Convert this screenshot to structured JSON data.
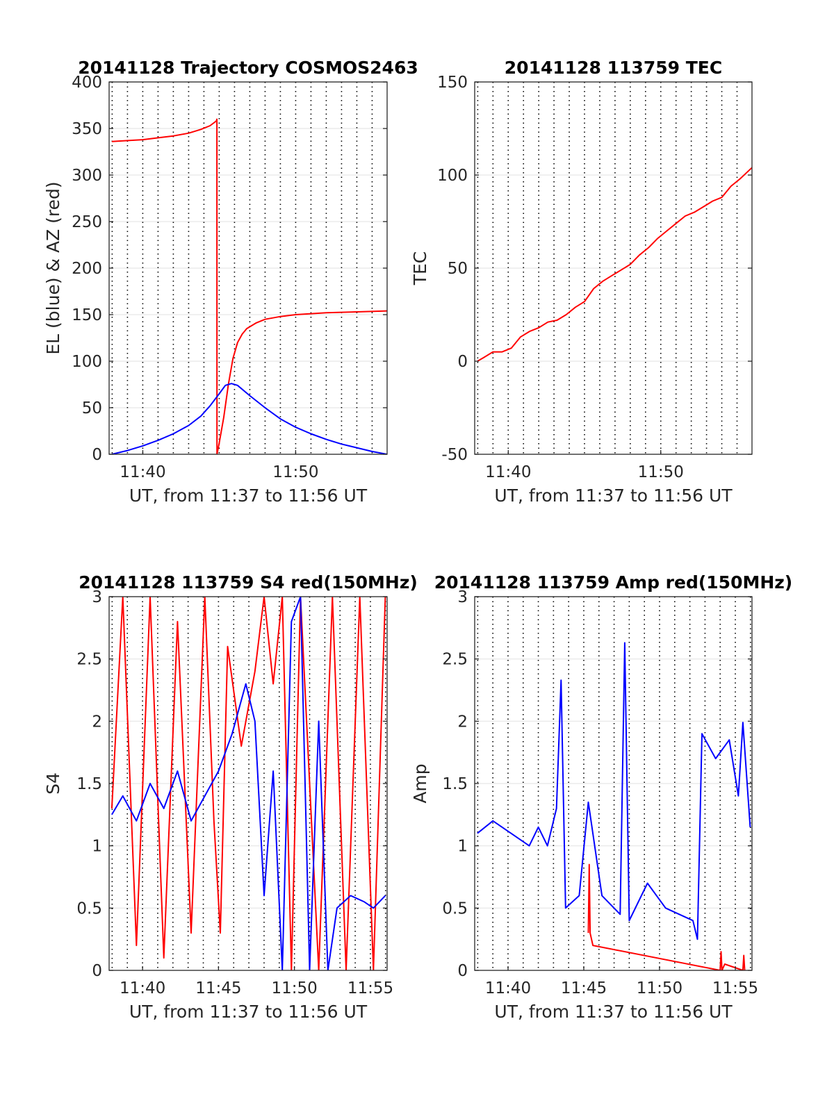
{
  "figure": {
    "background": "#ffffff"
  },
  "chart_data": [
    {
      "type": "line",
      "title": "20141128 Trajectory COSMOS2463",
      "xlabel": "UT, from 11:37 to 11:56 UT",
      "ylabel": "EL (blue) & AZ (red)",
      "xlim": [
        11.63,
        11.933
      ],
      "ylim": [
        0,
        400
      ],
      "xticks": [
        {
          "v": 11.6667,
          "label": "11:40"
        },
        {
          "v": 11.8333,
          "label": "11:50"
        }
      ],
      "yticks": [
        {
          "v": 0,
          "label": "0"
        },
        {
          "v": 50,
          "label": "50"
        },
        {
          "v": 100,
          "label": "100"
        },
        {
          "v": 150,
          "label": "150"
        },
        {
          "v": 200,
          "label": "200"
        },
        {
          "v": 250,
          "label": "250"
        },
        {
          "v": 300,
          "label": "300"
        },
        {
          "v": 350,
          "label": "350"
        },
        {
          "v": 400,
          "label": "400"
        }
      ],
      "grid": true,
      "minor_x_grid": "dotted",
      "series": [
        {
          "color": "#ff0000",
          "x": [
            11.633,
            11.65,
            11.6667,
            11.6833,
            11.7,
            11.7167,
            11.73,
            11.74,
            11.7467,
            11.7475,
            11.7476,
            11.75,
            11.755,
            11.76,
            11.765,
            11.77,
            11.775,
            11.78,
            11.79,
            11.8,
            11.8167,
            11.8333,
            11.8667,
            11.9,
            11.933
          ],
          "y": [
            336,
            337,
            338,
            340,
            342,
            345,
            349,
            353,
            358,
            360,
            0,
            12,
            40,
            75,
            103,
            120,
            129,
            135,
            141,
            145,
            148,
            150,
            152,
            153,
            154
          ]
        },
        {
          "color": "#0000ff",
          "x": [
            11.633,
            11.65,
            11.6667,
            11.6833,
            11.7,
            11.7167,
            11.73,
            11.74,
            11.75,
            11.7567,
            11.7633,
            11.77,
            11.7833,
            11.8,
            11.8167,
            11.8333,
            11.85,
            11.8667,
            11.8833,
            11.9,
            11.9167,
            11.933
          ],
          "y": [
            0,
            4,
            9,
            15,
            22,
            31,
            41,
            52,
            65,
            74,
            76,
            74,
            63,
            50,
            38,
            29,
            22,
            16,
            11,
            7,
            3,
            0
          ]
        }
      ]
    },
    {
      "type": "line",
      "title": "20141128 113759 TEC",
      "xlabel": "UT, from 11:37 to 11:56 UT",
      "ylabel": "TEC",
      "xlim": [
        11.63,
        11.933
      ],
      "ylim": [
        -50,
        150
      ],
      "xticks": [
        {
          "v": 11.6667,
          "label": "11:40"
        },
        {
          "v": 11.8333,
          "label": "11:50"
        }
      ],
      "yticks": [
        {
          "v": -50,
          "label": "-50"
        },
        {
          "v": 0,
          "label": "0"
        },
        {
          "v": 50,
          "label": "50"
        },
        {
          "v": 100,
          "label": "100"
        },
        {
          "v": 150,
          "label": "150"
        }
      ],
      "grid": true,
      "minor_x_grid": "dotted",
      "series": [
        {
          "color": "#ff0000",
          "x": [
            11.633,
            11.64,
            11.65,
            11.66,
            11.67,
            11.68,
            11.69,
            11.7,
            11.71,
            11.72,
            11.73,
            11.74,
            11.75,
            11.76,
            11.77,
            11.78,
            11.79,
            11.8,
            11.81,
            11.82,
            11.83,
            11.84,
            11.85,
            11.86,
            11.87,
            11.88,
            11.89,
            11.9,
            11.91,
            11.92,
            11.933
          ],
          "y": [
            0,
            2,
            5,
            5,
            7,
            13,
            16,
            18,
            21,
            22,
            25,
            29,
            32,
            39,
            43,
            46,
            49,
            52,
            57,
            61,
            66,
            70,
            74,
            78,
            80,
            83,
            86,
            88,
            94,
            98,
            104
          ]
        }
      ]
    },
    {
      "type": "line",
      "title": "20141128 113759 S4 red(150MHz)",
      "xlabel": "UT, from 11:37 to 11:56 UT",
      "ylabel": "S4",
      "xlim": [
        11.63,
        11.935
      ],
      "ylim": [
        0,
        3
      ],
      "xticks": [
        {
          "v": 11.6667,
          "label": "11:40"
        },
        {
          "v": 11.75,
          "label": "11:45"
        },
        {
          "v": 11.8333,
          "label": "11:50"
        },
        {
          "v": 11.9167,
          "label": "11:55"
        }
      ],
      "yticks": [
        {
          "v": 0,
          "label": "0"
        },
        {
          "v": 0.5,
          "label": "0.5"
        },
        {
          "v": 1,
          "label": "1"
        },
        {
          "v": 1.5,
          "label": "1.5"
        },
        {
          "v": 2,
          "label": "2"
        },
        {
          "v": 2.5,
          "label": "2.5"
        },
        {
          "v": 3,
          "label": "3"
        }
      ],
      "grid": true,
      "minor_x_grid": "dotted",
      "series": [
        {
          "color": "#ff0000",
          "x": [
            11.633,
            11.645,
            11.66,
            11.675,
            11.69,
            11.705,
            11.72,
            11.735,
            11.745,
            11.752,
            11.76,
            11.775,
            11.79,
            11.8,
            11.81,
            11.82,
            11.83,
            11.84,
            11.86,
            11.875,
            11.89,
            11.905,
            11.92,
            11.933
          ],
          "y": [
            1.3,
            3.0,
            0.2,
            3.0,
            0.1,
            2.8,
            0.3,
            3.0,
            1.2,
            0.3,
            2.6,
            1.8,
            2.4,
            3.0,
            2.3,
            3.0,
            0.0,
            3.0,
            0.0,
            3.0,
            0.0,
            3.0,
            0.0,
            3.0
          ]
        },
        {
          "color": "#0000ff",
          "x": [
            11.633,
            11.645,
            11.66,
            11.675,
            11.69,
            11.705,
            11.72,
            11.735,
            11.75,
            11.765,
            11.78,
            11.79,
            11.8,
            11.81,
            11.82,
            11.83,
            11.84,
            11.85,
            11.86,
            11.87,
            11.88,
            11.895,
            11.91,
            11.92,
            11.933
          ],
          "y": [
            1.25,
            1.4,
            1.2,
            1.5,
            1.3,
            1.6,
            1.2,
            1.4,
            1.6,
            1.9,
            2.3,
            2.0,
            0.6,
            1.6,
            0.0,
            2.8,
            3.0,
            0.0,
            2.0,
            0.0,
            0.5,
            0.6,
            0.55,
            0.5,
            0.6
          ]
        }
      ]
    },
    {
      "type": "line",
      "title": "20141128 113759 Amp red(150MHz)",
      "xlabel": "UT, from 11:37 to 11:56 UT",
      "ylabel": "Amp",
      "xlim": [
        11.63,
        11.935
      ],
      "ylim": [
        0,
        3
      ],
      "xticks": [
        {
          "v": 11.6667,
          "label": "11:40"
        },
        {
          "v": 11.75,
          "label": "11:45"
        },
        {
          "v": 11.8333,
          "label": "11:50"
        },
        {
          "v": 11.9167,
          "label": "11:55"
        }
      ],
      "yticks": [
        {
          "v": 0,
          "label": "0"
        },
        {
          "v": 0.5,
          "label": "0.5"
        },
        {
          "v": 1,
          "label": "1"
        },
        {
          "v": 1.5,
          "label": "1.5"
        },
        {
          "v": 2,
          "label": "2"
        },
        {
          "v": 2.5,
          "label": "2.5"
        },
        {
          "v": 3,
          "label": "3"
        }
      ],
      "grid": true,
      "minor_x_grid": "dotted",
      "series": [
        {
          "color": "#ff0000",
          "x": [
            11.755,
            11.756,
            11.757,
            11.76,
            11.9,
            11.901,
            11.902,
            11.905,
            11.925,
            11.926,
            11.927
          ],
          "y": [
            0.3,
            0.85,
            0.3,
            0.2,
            0.0,
            0.15,
            0.0,
            0.05,
            0.0,
            0.12,
            0.0
          ]
        },
        {
          "color": "#0000ff",
          "x": [
            11.633,
            11.65,
            11.67,
            11.69,
            11.7,
            11.71,
            11.72,
            11.725,
            11.73,
            11.745,
            11.755,
            11.77,
            11.79,
            11.795,
            11.8,
            11.82,
            11.84,
            11.855,
            11.87,
            11.875,
            11.88,
            11.895,
            11.91,
            11.92,
            11.925,
            11.933
          ],
          "y": [
            1.1,
            1.2,
            1.1,
            1.0,
            1.15,
            1.0,
            1.3,
            2.33,
            0.5,
            0.6,
            1.35,
            0.6,
            0.45,
            2.63,
            0.4,
            0.7,
            0.5,
            0.45,
            0.4,
            0.25,
            1.9,
            1.7,
            1.85,
            1.4,
            1.99,
            1.15
          ]
        }
      ]
    }
  ]
}
